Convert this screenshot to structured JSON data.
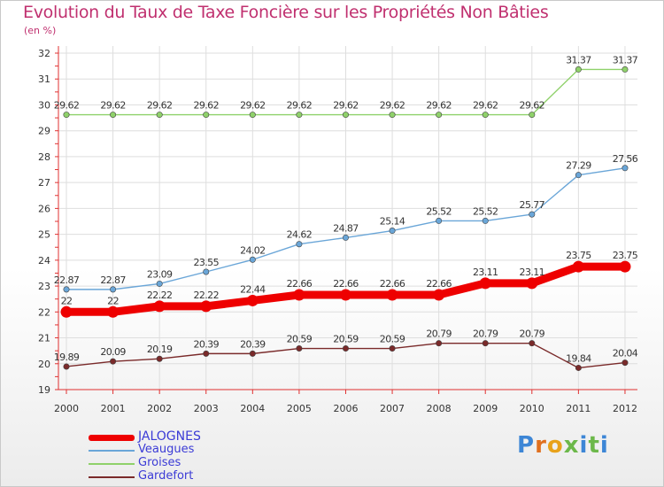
{
  "chart_data": {
    "type": "line",
    "title": "Evolution du Taux de Taxe Foncière sur les Propriétés Non Bâties",
    "subtitle": "(en %)",
    "x": [
      "2000",
      "2001",
      "2002",
      "2003",
      "2004",
      "2005",
      "2006",
      "2007",
      "2008",
      "2009",
      "2010",
      "2011",
      "2012"
    ],
    "ylim": [
      19,
      32
    ],
    "yticks": [
      "19",
      "20",
      "21",
      "22",
      "23",
      "24",
      "25",
      "26",
      "27",
      "28",
      "29",
      "30",
      "31",
      "32"
    ],
    "series": [
      {
        "name": "Gardefort",
        "color": "#7a2a2a",
        "values": [
          19.89,
          20.09,
          20.19,
          20.39,
          20.39,
          20.59,
          20.59,
          20.59,
          20.79,
          20.79,
          20.79,
          19.84,
          20.04
        ],
        "labels": [
          "19.89",
          "20.09",
          "20.19",
          "20.39",
          "20.39",
          "20.59",
          "20.59",
          "20.59",
          "20.79",
          "20.79",
          "20.79",
          "19.84",
          "20.04"
        ]
      },
      {
        "name": "Groises",
        "color": "#8fd16a",
        "values": [
          29.62,
          29.62,
          29.62,
          29.62,
          29.62,
          29.62,
          29.62,
          29.62,
          29.62,
          29.62,
          29.62,
          31.37,
          31.37
        ],
        "labels": [
          "29.62",
          "29.62",
          "29.62",
          "29.62",
          "29.62",
          "29.62",
          "29.62",
          "29.62",
          "29.62",
          "29.62",
          "29.62",
          "31.37",
          "31.37"
        ]
      },
      {
        "name": "Veaugues",
        "color": "#6aa6d8",
        "values": [
          22.87,
          22.87,
          23.09,
          23.55,
          24.02,
          24.62,
          24.87,
          25.14,
          25.52,
          25.52,
          25.77,
          27.29,
          27.56
        ],
        "labels": [
          "22.87",
          "22.87",
          "23.09",
          "23.55",
          "24.02",
          "24.62",
          "24.87",
          "25.14",
          "25.52",
          "25.52",
          "25.77",
          "27.29",
          "27.56"
        ]
      },
      {
        "name": "JALOGNES",
        "color": "#ee0000",
        "values": [
          22,
          22,
          22.22,
          22.22,
          22.44,
          22.66,
          22.66,
          22.66,
          22.66,
          23.11,
          23.11,
          23.75,
          23.75
        ],
        "labels": [
          "22",
          "22",
          "22.22",
          "22.22",
          "22.44",
          "22.66",
          "22.66",
          "22.66",
          "22.66",
          "23.11",
          "23.11",
          "23.75",
          "23.75"
        ]
      }
    ]
  },
  "legend": [
    {
      "label": "JALOGNES",
      "color": "#ee0000",
      "text_color": "#3b3bd6"
    },
    {
      "label": "Veaugues",
      "color": "#6aa6d8",
      "text_color": "#3b3bd6"
    },
    {
      "label": "Groises",
      "color": "#8fd16a",
      "text_color": "#3b3bd6"
    },
    {
      "label": "Gardefort",
      "color": "#7a2a2a",
      "text_color": "#3b3bd6"
    }
  ],
  "logo": {
    "text": "Proxiti",
    "letter_colors": [
      "#3d86d6",
      "#e0701f",
      "#e8a21b",
      "#6cb84a",
      "#3d86d6",
      "#6cb84a",
      "#3d86d6"
    ]
  }
}
